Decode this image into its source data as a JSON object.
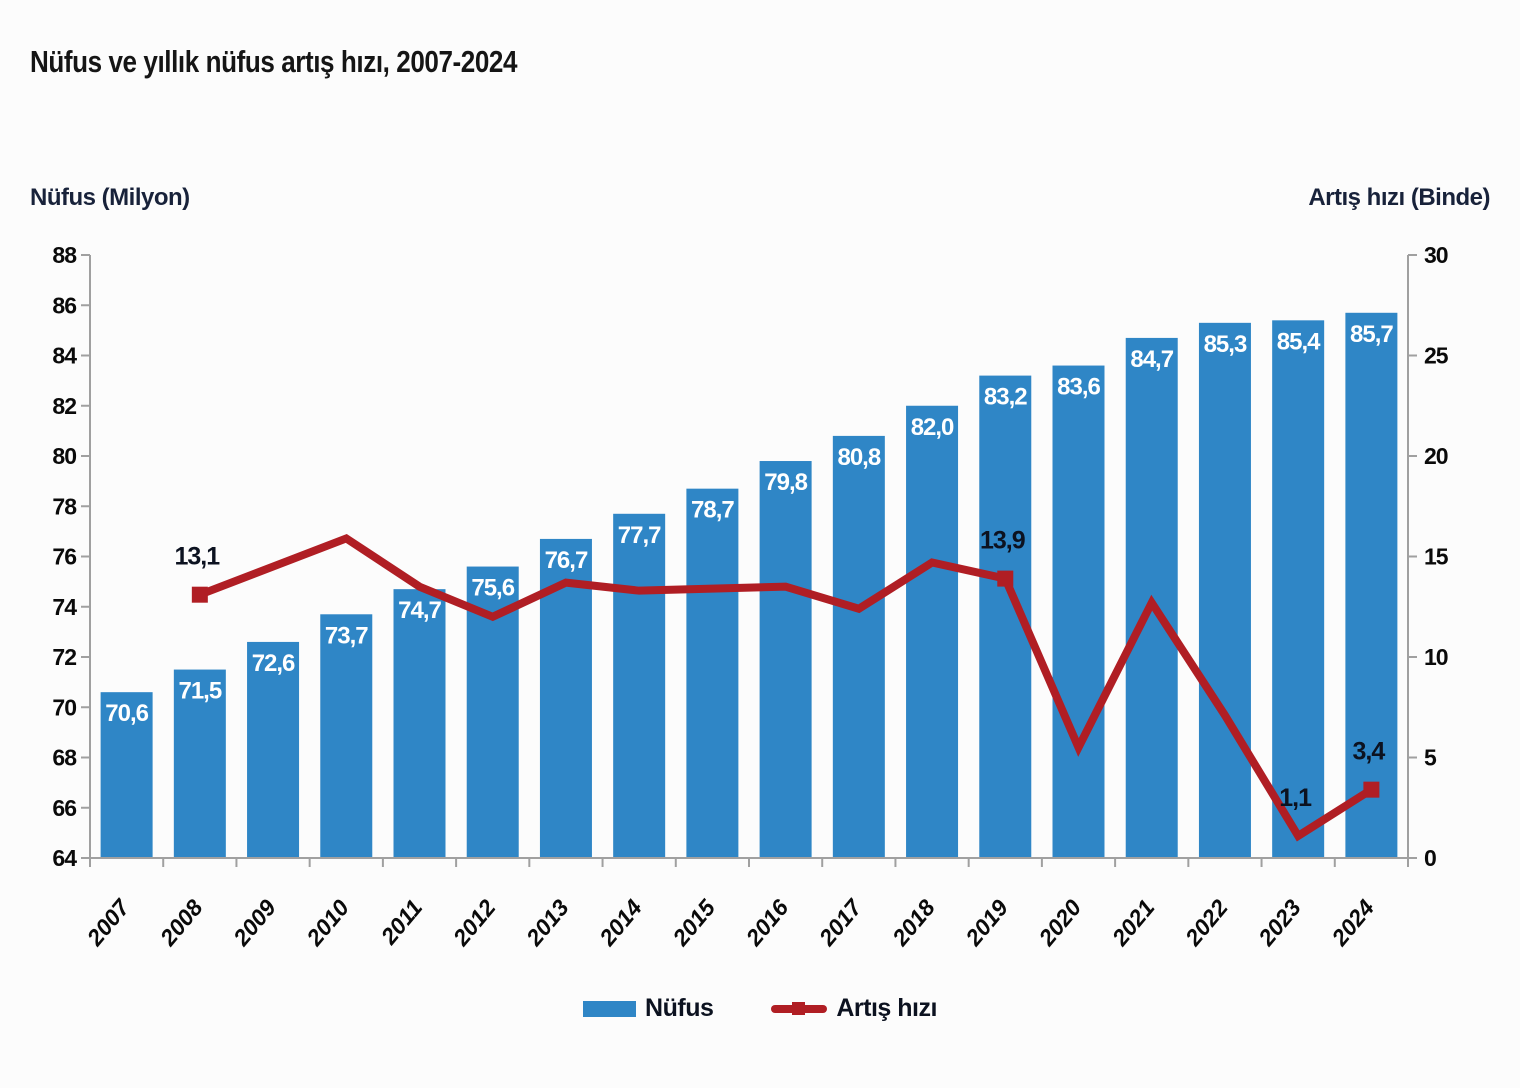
{
  "title": "Nüfus ve yıllık nüfus artış hızı, 2007-2024",
  "left_axis": {
    "caption": "Nüfus (Milyon)",
    "min": 64,
    "max": 88,
    "step": 2
  },
  "right_axis": {
    "caption": "Artış hızı (Binde)",
    "min": 0,
    "max": 30,
    "step": 5
  },
  "legend": {
    "items": [
      {
        "label": "Nüfus",
        "swatch": "bar"
      },
      {
        "label": "Artış hızı",
        "swatch": "line"
      }
    ]
  },
  "colors": {
    "bar": "#2f86c6",
    "bar_label": "#ffffff",
    "line": "#b01e24",
    "axis": "#a0a0a0",
    "tick_text": "#0a0a0a",
    "annotation_text": "#0c1220"
  },
  "chart_data": {
    "type": "bar+line",
    "title": "Nüfus ve yıllık nüfus artış hızı, 2007-2024",
    "categories": [
      "2007",
      "2008",
      "2009",
      "2010",
      "2011",
      "2012",
      "2013",
      "2014",
      "2015",
      "2016",
      "2017",
      "2018",
      "2019",
      "2020",
      "2021",
      "2022",
      "2023",
      "2024"
    ],
    "series": [
      {
        "name": "Nüfus",
        "type": "bar",
        "axis": "left",
        "values": [
          70.6,
          71.5,
          72.6,
          73.7,
          74.7,
          75.6,
          76.7,
          77.7,
          78.7,
          79.8,
          80.8,
          82.0,
          83.2,
          83.6,
          84.7,
          85.3,
          85.4,
          85.7
        ],
        "data_labels": "all"
      },
      {
        "name": "Artış hızı",
        "type": "line",
        "axis": "right",
        "values": [
          null,
          13.1,
          14.5,
          15.9,
          13.5,
          12.0,
          13.7,
          13.3,
          13.4,
          13.5,
          12.4,
          14.7,
          13.9,
          5.5,
          12.7,
          7.1,
          1.1,
          3.4
        ],
        "labeled_points": [
          "2008",
          "2019",
          "2023",
          "2024"
        ],
        "marker_points": [
          "2008",
          "2019",
          "2024"
        ]
      }
    ],
    "left_ylim": [
      64,
      88
    ],
    "right_ylim": [
      0,
      30
    ],
    "grid": false,
    "legend_position": "bottom",
    "decimal_separator": ","
  }
}
